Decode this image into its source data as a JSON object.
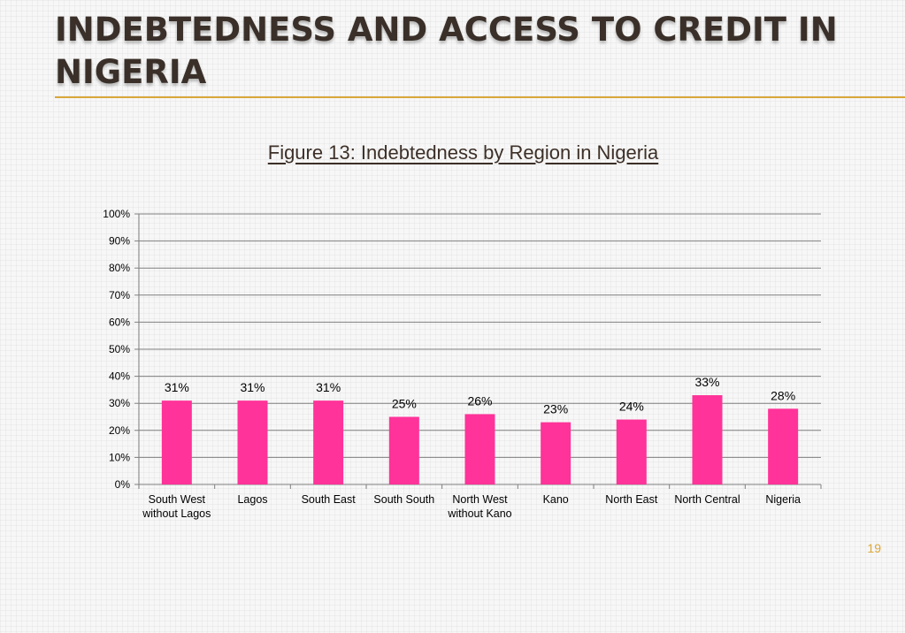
{
  "slide": {
    "title": "INDEBTEDNESS AND ACCESS TO CREDIT IN NIGERIA",
    "page_number": "19",
    "colors": {
      "title": "#3a3029",
      "accent": "#d9a73a",
      "bar": "#ff3399"
    }
  },
  "chart_data": {
    "type": "bar",
    "title": "Figure 13: Indebtedness by Region in Nigeria",
    "xlabel": "",
    "ylabel": "",
    "categories": [
      [
        "South West",
        "without Lagos"
      ],
      [
        "Lagos"
      ],
      [
        "South East"
      ],
      [
        "South South"
      ],
      [
        "North West",
        "without Kano"
      ],
      [
        "Kano"
      ],
      [
        "North East"
      ],
      [
        "North Central"
      ],
      [
        "Nigeria"
      ]
    ],
    "values": [
      31,
      31,
      31,
      25,
      26,
      23,
      24,
      33,
      28
    ],
    "data_labels": [
      "31%",
      "31%",
      "31%",
      "25%",
      "26%",
      "23%",
      "24%",
      "33%",
      "28%"
    ],
    "yticks": [
      "0%",
      "10%",
      "20%",
      "30%",
      "40%",
      "50%",
      "60%",
      "70%",
      "80%",
      "90%",
      "100%"
    ],
    "ylim": [
      0,
      100
    ],
    "grid": true,
    "legend": "none"
  }
}
